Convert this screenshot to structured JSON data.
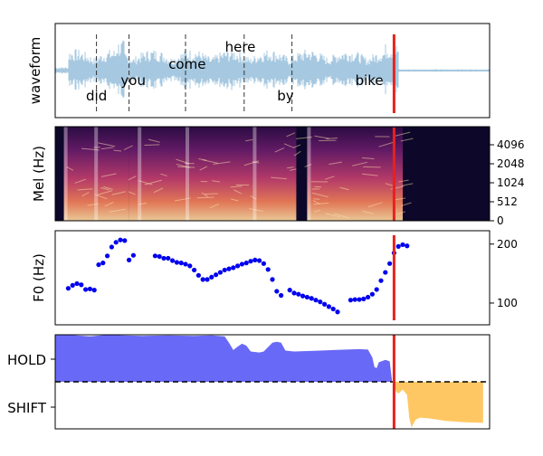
{
  "chart_data": [
    {
      "type": "area",
      "panel": "waveform",
      "ylabel": "waveform",
      "words": [
        {
          "text": "did",
          "x": 0.05
        },
        {
          "text": "you",
          "x": 0.13
        },
        {
          "text": "come",
          "x": 0.24
        },
        {
          "text": "here",
          "x": 0.37
        },
        {
          "text": "by",
          "x": 0.49
        },
        {
          "text": "bike",
          "x": 0.67
        }
      ],
      "word_boundaries": [
        0.095,
        0.17,
        0.3,
        0.435,
        0.545
      ],
      "marker_x": 0.78,
      "colors": {
        "wave": "#a6c8e0",
        "marker": "#e8211c",
        "boundary": "#333333"
      }
    },
    {
      "type": "heatmap",
      "panel": "mel-spectrogram",
      "ylabel": "Mel (Hz)",
      "yticks": [
        "0",
        "512",
        "1024",
        "2048",
        "4096"
      ],
      "marker_x": 0.78,
      "colors": {
        "low": "#0d0829",
        "mid": "#9c2e7f",
        "high": "#fcd9a0"
      }
    },
    {
      "type": "scatter",
      "panel": "f0",
      "ylabel": "F0 (Hz)",
      "yticks": [
        "100",
        "200"
      ],
      "ylim": [
        80,
        215
      ],
      "points": [
        [
          0.03,
          125
        ],
        [
          0.04,
          130
        ],
        [
          0.05,
          133
        ],
        [
          0.06,
          131
        ],
        [
          0.07,
          123
        ],
        [
          0.08,
          124
        ],
        [
          0.09,
          122
        ],
        [
          0.1,
          165
        ],
        [
          0.11,
          168
        ],
        [
          0.12,
          180
        ],
        [
          0.13,
          195
        ],
        [
          0.14,
          203
        ],
        [
          0.15,
          207
        ],
        [
          0.16,
          206
        ],
        [
          0.17,
          173
        ],
        [
          0.18,
          181
        ],
        [
          0.23,
          180
        ],
        [
          0.24,
          179
        ],
        [
          0.25,
          176
        ],
        [
          0.26,
          176
        ],
        [
          0.27,
          172
        ],
        [
          0.28,
          169
        ],
        [
          0.29,
          168
        ],
        [
          0.3,
          166
        ],
        [
          0.31,
          163
        ],
        [
          0.32,
          156
        ],
        [
          0.33,
          147
        ],
        [
          0.34,
          140
        ],
        [
          0.35,
          140
        ],
        [
          0.36,
          144
        ],
        [
          0.37,
          148
        ],
        [
          0.38,
          152
        ],
        [
          0.39,
          156
        ],
        [
          0.4,
          158
        ],
        [
          0.41,
          160
        ],
        [
          0.42,
          163
        ],
        [
          0.43,
          166
        ],
        [
          0.44,
          168
        ],
        [
          0.45,
          171
        ],
        [
          0.46,
          173
        ],
        [
          0.47,
          172
        ],
        [
          0.48,
          167
        ],
        [
          0.49,
          157
        ],
        [
          0.5,
          140
        ],
        [
          0.51,
          120
        ],
        [
          0.52,
          113
        ],
        [
          0.54,
          122
        ],
        [
          0.55,
          117
        ],
        [
          0.56,
          115
        ],
        [
          0.57,
          112
        ],
        [
          0.58,
          110
        ],
        [
          0.59,
          108
        ],
        [
          0.6,
          105
        ],
        [
          0.61,
          102
        ],
        [
          0.62,
          98
        ],
        [
          0.63,
          94
        ],
        [
          0.64,
          90
        ],
        [
          0.65,
          85
        ],
        [
          0.68,
          105
        ],
        [
          0.69,
          106
        ],
        [
          0.7,
          106
        ],
        [
          0.71,
          107
        ],
        [
          0.72,
          110
        ],
        [
          0.73,
          115
        ],
        [
          0.74,
          123
        ],
        [
          0.75,
          138
        ],
        [
          0.76,
          152
        ],
        [
          0.77,
          167
        ],
        [
          0.78,
          185
        ],
        [
          0.79,
          196
        ],
        [
          0.8,
          199
        ],
        [
          0.81,
          197
        ]
      ],
      "marker_x": 0.78,
      "colors": {
        "points": "#0000ee",
        "marker": "#e8211c"
      }
    },
    {
      "type": "area",
      "panel": "turn-taking",
      "yticks": [
        "HOLD",
        "SHIFT"
      ],
      "hold": [
        [
          0.0,
          0.95
        ],
        [
          0.02,
          0.97
        ],
        [
          0.05,
          0.95
        ],
        [
          0.08,
          0.93
        ],
        [
          0.12,
          0.96
        ],
        [
          0.16,
          0.95
        ],
        [
          0.2,
          0.94
        ],
        [
          0.26,
          0.95
        ],
        [
          0.32,
          0.94
        ],
        [
          0.36,
          0.95
        ],
        [
          0.39,
          0.93
        ],
        [
          0.4,
          0.8
        ],
        [
          0.41,
          0.65
        ],
        [
          0.42,
          0.72
        ],
        [
          0.43,
          0.78
        ],
        [
          0.44,
          0.74
        ],
        [
          0.45,
          0.62
        ],
        [
          0.47,
          0.6
        ],
        [
          0.48,
          0.62
        ],
        [
          0.5,
          0.8
        ],
        [
          0.51,
          0.82
        ],
        [
          0.52,
          0.8
        ],
        [
          0.53,
          0.64
        ],
        [
          0.55,
          0.62
        ],
        [
          0.58,
          0.63
        ],
        [
          0.61,
          0.64
        ],
        [
          0.64,
          0.65
        ],
        [
          0.67,
          0.66
        ],
        [
          0.7,
          0.67
        ],
        [
          0.72,
          0.66
        ],
        [
          0.73,
          0.5
        ],
        [
          0.735,
          0.3
        ],
        [
          0.74,
          0.28
        ],
        [
          0.745,
          0.4
        ],
        [
          0.76,
          0.45
        ],
        [
          0.77,
          0.42
        ],
        [
          0.775,
          0.05
        ]
      ],
      "shift": [
        [
          0.78,
          0.05
        ],
        [
          0.785,
          0.15
        ],
        [
          0.79,
          0.18
        ],
        [
          0.8,
          0.12
        ],
        [
          0.81,
          0.2
        ],
        [
          0.815,
          0.55
        ],
        [
          0.82,
          0.7
        ],
        [
          0.83,
          0.58
        ],
        [
          0.84,
          0.55
        ],
        [
          0.86,
          0.56
        ],
        [
          0.9,
          0.6
        ],
        [
          0.94,
          0.62
        ],
        [
          1.0,
          0.63
        ]
      ],
      "marker_x": 0.78,
      "colors": {
        "hold": "#5c5cf6",
        "shift": "#ffc45c",
        "marker": "#e8211c"
      }
    }
  ]
}
